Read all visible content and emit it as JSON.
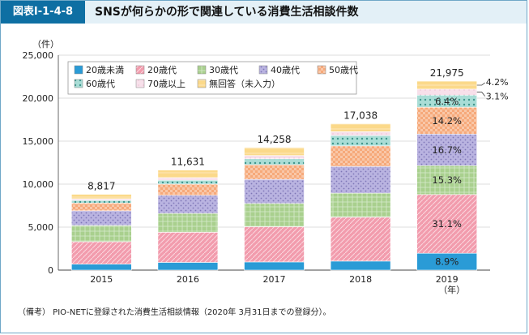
{
  "header": {
    "figure_label": "図表Ⅰ-1-4-8",
    "title": "SNSが何らかの形で関連している消費生活相談件数"
  },
  "note": "（備考）  PIO-NETに登録された消費生活相談情報（2020年 3月31日までの登録分）。",
  "chart_data": {
    "type": "bar",
    "stacked": true,
    "y_unit_label": "（件）",
    "x_unit_label": "（年）",
    "categories": [
      "2015",
      "2016",
      "2017",
      "2018",
      "2019"
    ],
    "ylim": [
      0,
      25000
    ],
    "yticks": [
      0,
      5000,
      10000,
      15000,
      20000,
      25000
    ],
    "ytick_labels": [
      "0",
      "5,000",
      "10,000",
      "15,000",
      "20,000",
      "25,000"
    ],
    "totals": [
      8817,
      11631,
      14258,
      17038,
      21975
    ],
    "total_labels": [
      "8,817",
      "11,631",
      "14,258",
      "17,038",
      "21,975"
    ],
    "legend_position": "top-left",
    "series": [
      {
        "name": "20歳未満",
        "color": "#2a9bd6",
        "pattern": "solid",
        "values": [
          700,
          900,
          950,
          1050,
          1960
        ],
        "label_2019": "8.9%"
      },
      {
        "name": "20歳代",
        "color": "#f29cad",
        "pattern": "hatch",
        "values": [
          2600,
          3500,
          4100,
          5100,
          6830
        ],
        "label_2019": "31.1%"
      },
      {
        "name": "30歳代",
        "color": "#a9d08e",
        "pattern": "grid",
        "values": [
          1900,
          2200,
          2700,
          2800,
          3360
        ],
        "label_2019": "15.3%"
      },
      {
        "name": "40歳代",
        "color": "#b9b3e0",
        "pattern": "dots",
        "values": [
          1700,
          2100,
          2800,
          3100,
          3670
        ],
        "label_2019": "16.7%"
      },
      {
        "name": "50歳代",
        "color": "#f6a97a",
        "pattern": "checker",
        "values": [
          900,
          1300,
          1700,
          2400,
          3120
        ],
        "label_2019": "14.2%"
      },
      {
        "name": "60歳代",
        "color": "#a9ddd6",
        "pattern": "bigdots",
        "values": [
          300,
          450,
          700,
          1200,
          1410
        ],
        "label_2019": "6.4%"
      },
      {
        "name": "70歳以上",
        "color": "#f7e0ea",
        "pattern": "light",
        "values": [
          200,
          300,
          380,
          450,
          700
        ],
        "label_2019": "3.1%"
      },
      {
        "name": "無回答（未入力）",
        "color": "#fbd98a",
        "pattern": "lines",
        "values": [
          517,
          881,
          928,
          938,
          925
        ],
        "label_2019": "4.2%"
      }
    ]
  }
}
